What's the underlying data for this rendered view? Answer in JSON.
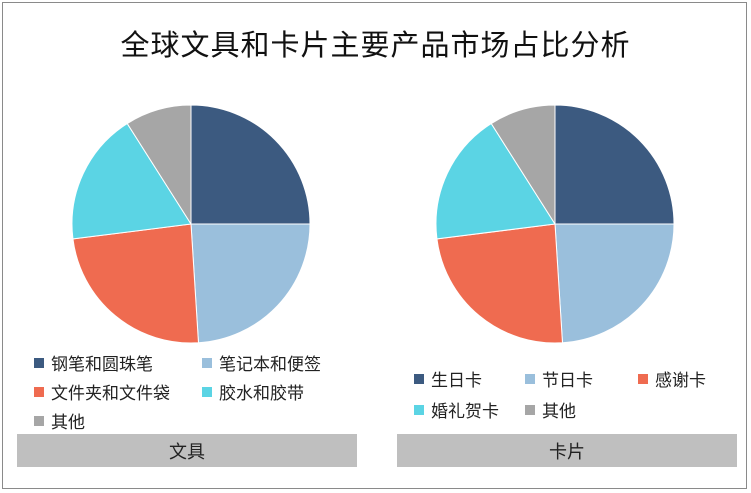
{
  "title": "全球文具和卡片主要产品市场占比分析",
  "colors": [
    "#3c5a80",
    "#9abfdc",
    "#ef6b50",
    "#5bd4e4",
    "#a6a6a6"
  ],
  "chart_data": [
    {
      "type": "pie",
      "label": "文具",
      "categories": [
        "钢笔和圆珠笔",
        "笔记本和便签",
        "文件夹和文件袋",
        "胶水和胶带",
        "其他"
      ],
      "values": [
        25,
        24,
        24,
        18,
        9
      ]
    },
    {
      "type": "pie",
      "label": "卡片",
      "categories": [
        "生日卡",
        "节日卡",
        "感谢卡",
        "婚礼贺卡",
        "其他"
      ],
      "values": [
        25,
        24,
        24,
        18,
        9
      ]
    }
  ]
}
